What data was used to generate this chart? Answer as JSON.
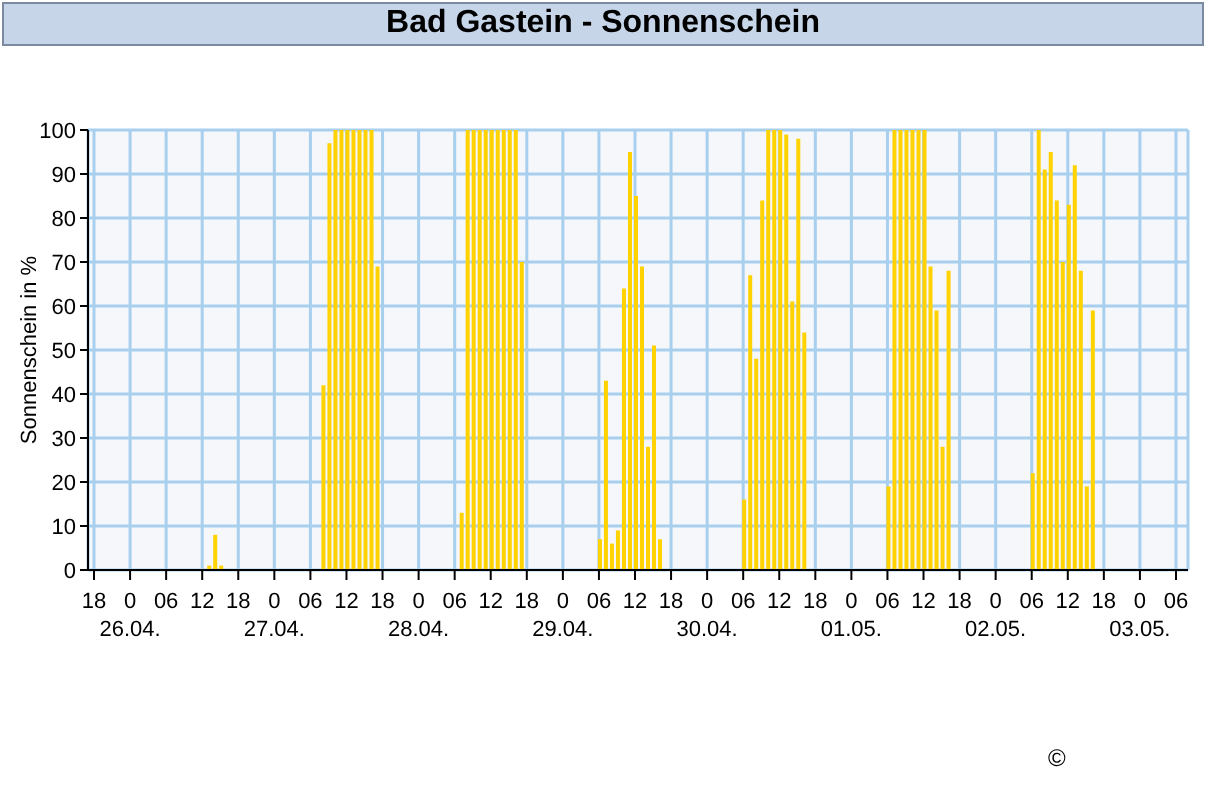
{
  "chart_data": {
    "type": "bar",
    "title": "Bad Gastein - Sonnenschein",
    "ylabel": "Sonnenschein in %",
    "x": [
      "--04-26T13:00",
      "--04-26T14:00",
      "--04-26T15:00",
      "--04-27T08:00",
      "--04-27T09:00",
      "--04-27T10:00",
      "--04-27T11:00",
      "--04-27T12:00",
      "--04-27T13:00",
      "--04-27T14:00",
      "--04-27T15:00",
      "--04-27T16:00",
      "--04-27T17:00",
      "--04-28T07:00",
      "--04-28T08:00",
      "--04-28T09:00",
      "--04-28T10:00",
      "--04-28T11:00",
      "--04-28T12:00",
      "--04-28T13:00",
      "--04-28T14:00",
      "--04-28T15:00",
      "--04-28T16:00",
      "--04-28T17:00",
      "--04-29T06:00",
      "--04-29T07:00",
      "--04-29T08:00",
      "--04-29T09:00",
      "--04-29T10:00",
      "--04-29T11:00",
      "--04-29T12:00",
      "--04-29T13:00",
      "--04-29T14:00",
      "--04-29T15:00",
      "--04-29T16:00",
      "--04-30T06:00",
      "--04-30T07:00",
      "--04-30T08:00",
      "--04-30T09:00",
      "--04-30T10:00",
      "--04-30T11:00",
      "--04-30T12:00",
      "--04-30T13:00",
      "--04-30T14:00",
      "--04-30T15:00",
      "--04-30T16:00",
      "--05-01T06:00",
      "--05-01T07:00",
      "--05-01T08:00",
      "--05-01T09:00",
      "--05-01T10:00",
      "--05-01T11:00",
      "--05-01T12:00",
      "--05-01T13:00",
      "--05-01T14:00",
      "--05-01T15:00",
      "--05-01T16:00",
      "--05-02T06:00",
      "--05-02T07:00",
      "--05-02T08:00",
      "--05-02T09:00",
      "--05-02T10:00",
      "--05-02T11:00",
      "--05-02T12:00",
      "--05-02T13:00",
      "--05-02T14:00",
      "--05-02T15:00",
      "--05-02T16:00"
    ],
    "series": [
      {
        "color": "#ffd200",
        "values": [
          1,
          8,
          1,
          42,
          97,
          100,
          100,
          100,
          100,
          100,
          100,
          100,
          69,
          13,
          100,
          100,
          100,
          100,
          100,
          100,
          100,
          100,
          100,
          70,
          7,
          43,
          6,
          9,
          64,
          95,
          85,
          69,
          28,
          51,
          7,
          16,
          67,
          48,
          84,
          100,
          100,
          100,
          99,
          61,
          98,
          54,
          19,
          100,
          100,
          100,
          100,
          100,
          100,
          69,
          59,
          28,
          68,
          22,
          100,
          91,
          95,
          84,
          70,
          83,
          92,
          68,
          19,
          59
        ]
      }
    ],
    "xlim": [
      "--04-25T17:00",
      "--05-03T08:00"
    ],
    "xticks": [
      {
        "value": "--04-25T18:00",
        "label": "18"
      },
      {
        "value": "--04-26T00:00",
        "label": "0\n26.04."
      },
      {
        "value": "--04-26T06:00",
        "label": "06"
      },
      {
        "value": "--04-26T12:00",
        "label": "12"
      },
      {
        "value": "--04-26T18:00",
        "label": "18"
      },
      {
        "value": "--04-27T00:00",
        "label": "0\n27.04."
      },
      {
        "value": "--04-27T06:00",
        "label": "06"
      },
      {
        "value": "--04-27T12:00",
        "label": "12"
      },
      {
        "value": "--04-27T18:00",
        "label": "18"
      },
      {
        "value": "--04-28T00:00",
        "label": "0\n28.04."
      },
      {
        "value": "--04-28T06:00",
        "label": "06"
      },
      {
        "value": "--04-28T12:00",
        "label": "12"
      },
      {
        "value": "--04-28T18:00",
        "label": "18"
      },
      {
        "value": "--04-29T00:00",
        "label": "0\n29.04."
      },
      {
        "value": "--04-29T06:00",
        "label": "06"
      },
      {
        "value": "--04-29T12:00",
        "label": "12"
      },
      {
        "value": "--04-29T18:00",
        "label": "18"
      },
      {
        "value": "--04-30T00:00",
        "label": "0\n30.04."
      },
      {
        "value": "--04-30T06:00",
        "label": "06"
      },
      {
        "value": "--04-30T12:00",
        "label": "12"
      },
      {
        "value": "--04-30T18:00",
        "label": "18"
      },
      {
        "value": "--05-01T00:00",
        "label": "0\n01.05."
      },
      {
        "value": "--05-01T06:00",
        "label": "06"
      },
      {
        "value": "--05-01T12:00",
        "label": "12"
      },
      {
        "value": "--05-01T18:00",
        "label": "18"
      },
      {
        "value": "--05-02T00:00",
        "label": "0\n02.05."
      },
      {
        "value": "--05-02T06:00",
        "label": "06"
      },
      {
        "value": "--05-02T12:00",
        "label": "12"
      },
      {
        "value": "--05-02T18:00",
        "label": "18"
      },
      {
        "value": "--05-03T00:00",
        "label": "0\n03.05."
      },
      {
        "value": "--05-03T06:00",
        "label": "06"
      }
    ],
    "ylim": [
      0,
      100
    ],
    "yticks": [
      0,
      10,
      20,
      30,
      40,
      50,
      60,
      70,
      80,
      90,
      100
    ],
    "grid": true,
    "annotations": [
      "©"
    ]
  }
}
